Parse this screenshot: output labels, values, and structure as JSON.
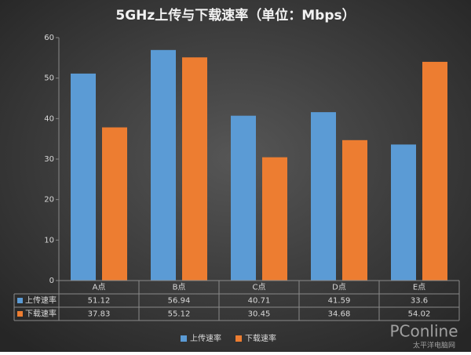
{
  "chart_data": {
    "type": "bar",
    "title": "5GHz上传与下载速率（单位：Mbps）",
    "categories": [
      "A点",
      "B点",
      "C点",
      "D点",
      "E点"
    ],
    "series": [
      {
        "name": "上传速率",
        "color": "#5b9bd5",
        "values": [
          51.12,
          56.94,
          40.71,
          41.59,
          33.6
        ]
      },
      {
        "name": "下载速率",
        "color": "#ed7d31",
        "values": [
          37.83,
          55.12,
          30.45,
          34.68,
          54.02
        ]
      }
    ],
    "ylim": [
      0,
      60
    ],
    "yticks": [
      0,
      10,
      20,
      30,
      40,
      50,
      60
    ],
    "grid": false,
    "data_table": true,
    "legend": "bottom"
  },
  "watermark": {
    "brand": "PConline",
    "sub": "太平洋电脑网"
  }
}
